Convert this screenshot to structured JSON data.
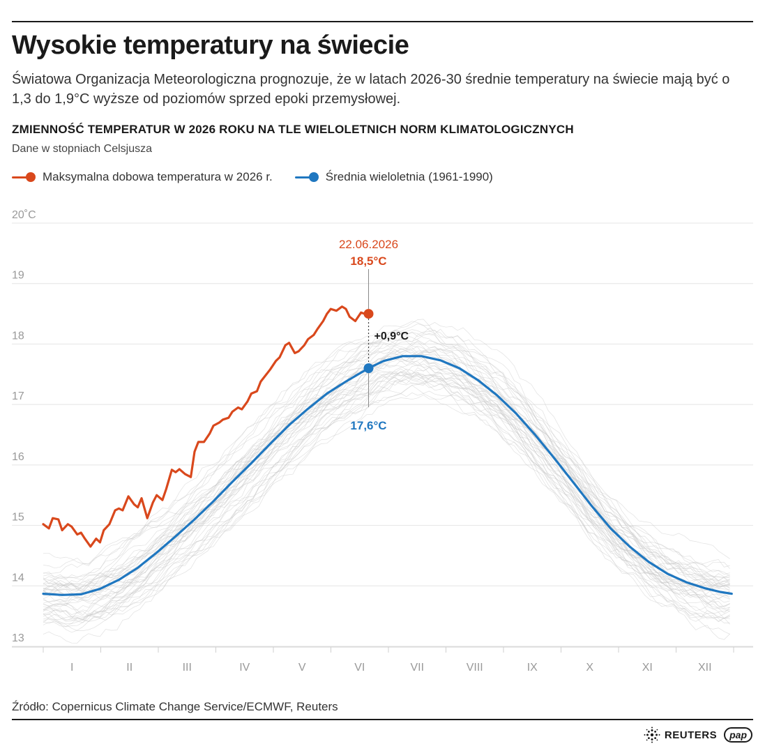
{
  "header": {
    "title": "Wysokie temperatury na świecie",
    "subtitle": "Światowa Organizacja Meteorologiczna prognozuje, że w latach 2026-30 średnie temperatury na świecie mają być o 1,3 do 1,9°C wyższe od poziomów sprzed epoki przemysłowej.",
    "chart_heading": "ZMIENNOŚĆ TEMPERATUR W 2026 ROKU NA TLE WIELOLETNICH NORM KLIMATOLOGICZNYCH",
    "units_note": "Dane w stopniach Celsjusza"
  },
  "legend": {
    "items": [
      {
        "label": "Maksymalna dobowa temperatura w 2026 r.",
        "color": "#d9481c"
      },
      {
        "label": "Średnia wieloletnia (1961-1990)",
        "color": "#1f77c0"
      }
    ]
  },
  "colors": {
    "max_2026": "#d9481c",
    "mean": "#1f77c0",
    "background_years": "#c8c8c8",
    "grid": "#e4e4e4",
    "axis_text": "#999999"
  },
  "chart_data": {
    "type": "line",
    "y_unit_label": "20˚C",
    "ylim": [
      13,
      20
    ],
    "yticks": [
      13,
      14,
      15,
      16,
      17,
      18,
      19,
      20
    ],
    "ytick_labels": [
      "13",
      "14",
      "15",
      "16",
      "17",
      "18",
      "19",
      "20˚C"
    ],
    "x_domain_days": [
      0,
      365
    ],
    "months": [
      "I",
      "II",
      "III",
      "IV",
      "V",
      "VI",
      "VII",
      "VIII",
      "IX",
      "X",
      "XI",
      "XII"
    ],
    "grid": true,
    "legend_position": "top-left",
    "series": [
      {
        "name": "Średnia wieloletnia (1961-1990)",
        "x": [
          0,
          10,
          20,
          30,
          40,
          50,
          60,
          70,
          80,
          90,
          100,
          110,
          120,
          130,
          140,
          150,
          160,
          172,
          180,
          190,
          200,
          210,
          220,
          230,
          240,
          250,
          260,
          270,
          280,
          290,
          300,
          310,
          320,
          330,
          340,
          350,
          358,
          364
        ],
        "values": [
          13.87,
          13.85,
          13.86,
          13.95,
          14.1,
          14.3,
          14.55,
          14.82,
          15.1,
          15.4,
          15.72,
          16.03,
          16.35,
          16.66,
          16.93,
          17.18,
          17.38,
          17.6,
          17.72,
          17.8,
          17.8,
          17.73,
          17.6,
          17.4,
          17.15,
          16.85,
          16.5,
          16.12,
          15.72,
          15.32,
          14.95,
          14.65,
          14.4,
          14.2,
          14.06,
          13.96,
          13.9,
          13.87
        ]
      },
      {
        "name": "Maksymalna dobowa temperatura w 2026 r.",
        "x": [
          0,
          3,
          5,
          8,
          10,
          13,
          15,
          18,
          20,
          22,
          25,
          28,
          30,
          32,
          35,
          38,
          40,
          42,
          45,
          48,
          50,
          52,
          55,
          58,
          60,
          63,
          65,
          68,
          70,
          72,
          75,
          78,
          80,
          82,
          85,
          88,
          90,
          93,
          95,
          98,
          100,
          103,
          105,
          108,
          110,
          113,
          115,
          118,
          120,
          123,
          125,
          128,
          130,
          133,
          135,
          138,
          140,
          143,
          145,
          148,
          150,
          152,
          155,
          158,
          160,
          162,
          165,
          168,
          170,
          172
        ],
        "values": [
          15.02,
          14.95,
          15.12,
          15.1,
          14.92,
          15.02,
          14.98,
          14.85,
          14.88,
          14.78,
          14.65,
          14.78,
          14.72,
          14.92,
          15.02,
          15.25,
          15.28,
          15.25,
          15.48,
          15.35,
          15.3,
          15.45,
          15.12,
          15.38,
          15.5,
          15.42,
          15.6,
          15.92,
          15.88,
          15.93,
          15.85,
          15.8,
          16.22,
          16.38,
          16.38,
          16.52,
          16.65,
          16.7,
          16.75,
          16.78,
          16.88,
          16.95,
          16.92,
          17.05,
          17.18,
          17.22,
          17.38,
          17.5,
          17.58,
          17.72,
          17.78,
          17.98,
          18.02,
          17.85,
          17.88,
          17.98,
          18.08,
          18.15,
          18.25,
          18.38,
          18.5,
          18.58,
          18.55,
          18.62,
          18.58,
          18.45,
          18.38,
          18.52,
          18.5,
          18.55
        ]
      }
    ],
    "annotations": {
      "peak_date": "22.06.2026",
      "peak_value_label": "18,5°C",
      "peak_value": 18.5,
      "mean_value_label": "17,6°C",
      "mean_value": 17.6,
      "difference_label": "+0,9°C",
      "annotation_day": 172
    }
  },
  "footer": {
    "source": "Źródło: Copernicus Climate Change Service/ECMWF, Reuters",
    "logo_reuters": "REUTERS",
    "logo_pap": "pap"
  }
}
